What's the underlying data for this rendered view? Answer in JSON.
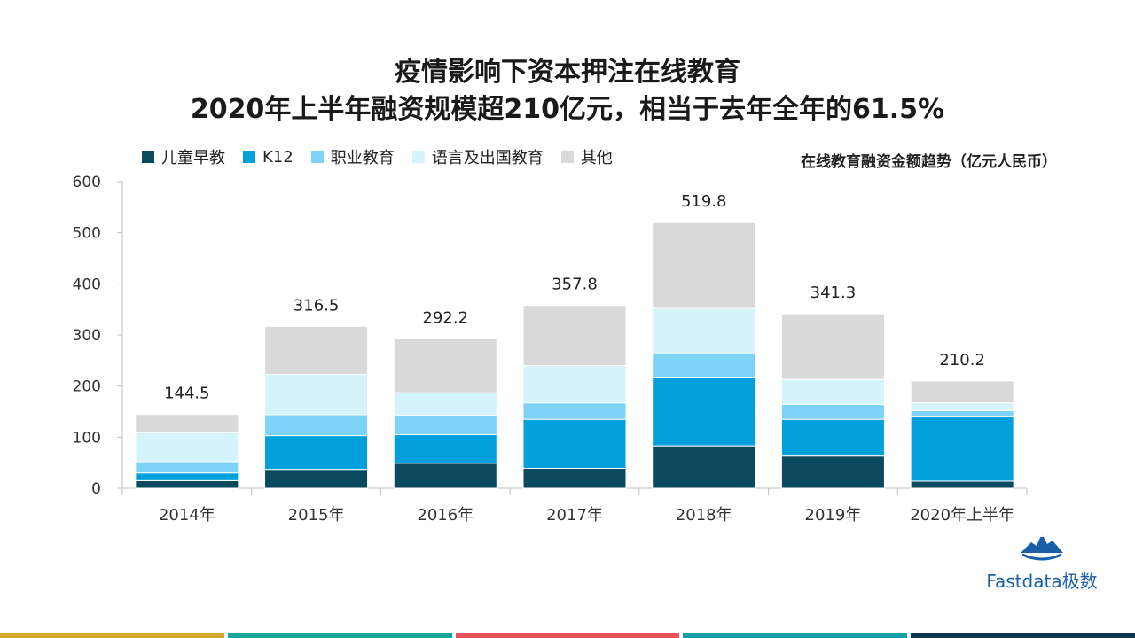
{
  "titles": {
    "line1": "疫情影响下资本押注在线教育",
    "line2": "2020年上半年融资规模超210亿元，相当于去年全年的61.5%"
  },
  "unit_label": "在线教育融资金额趋势（亿元人民币）",
  "brand": "Fastdata极数",
  "stripe_colors": [
    "#d4a82a",
    "#18a89a",
    "#e8525a",
    "#18a0a8",
    "#0d3550"
  ],
  "chart_data": {
    "type": "bar",
    "stacked": true,
    "categories": [
      "2014年",
      "2015年",
      "2016年",
      "2017年",
      "2018年",
      "2019年",
      "2020年上半年"
    ],
    "series": [
      {
        "name": "儿童早教",
        "color": "#0b4a5e",
        "values": [
          15,
          37,
          49,
          39,
          83,
          63,
          14
        ]
      },
      {
        "name": "K12",
        "color": "#00a0dc",
        "values": [
          15,
          66,
          56,
          96,
          133,
          72,
          126
        ]
      },
      {
        "name": "职业教育",
        "color": "#7dd3f5",
        "values": [
          22,
          41,
          38,
          32,
          47,
          29,
          12
        ]
      },
      {
        "name": "语言及出国教育",
        "color": "#d4f3fb",
        "values": [
          57,
          79,
          44,
          73,
          89,
          49,
          15
        ]
      },
      {
        "name": "其他",
        "color": "#d9d9d9",
        "values": [
          35.5,
          93.5,
          105.2,
          117.8,
          167.8,
          128.3,
          43.2
        ]
      }
    ],
    "totals": [
      "144.5",
      "316.5",
      "292.2",
      "357.8",
      "519.8",
      "341.3",
      "210.2"
    ],
    "yticks": [
      "0",
      "100",
      "200",
      "300",
      "400",
      "500",
      "600"
    ],
    "ylim": [
      0,
      600
    ],
    "legend_position": "top-left",
    "grid": false
  }
}
